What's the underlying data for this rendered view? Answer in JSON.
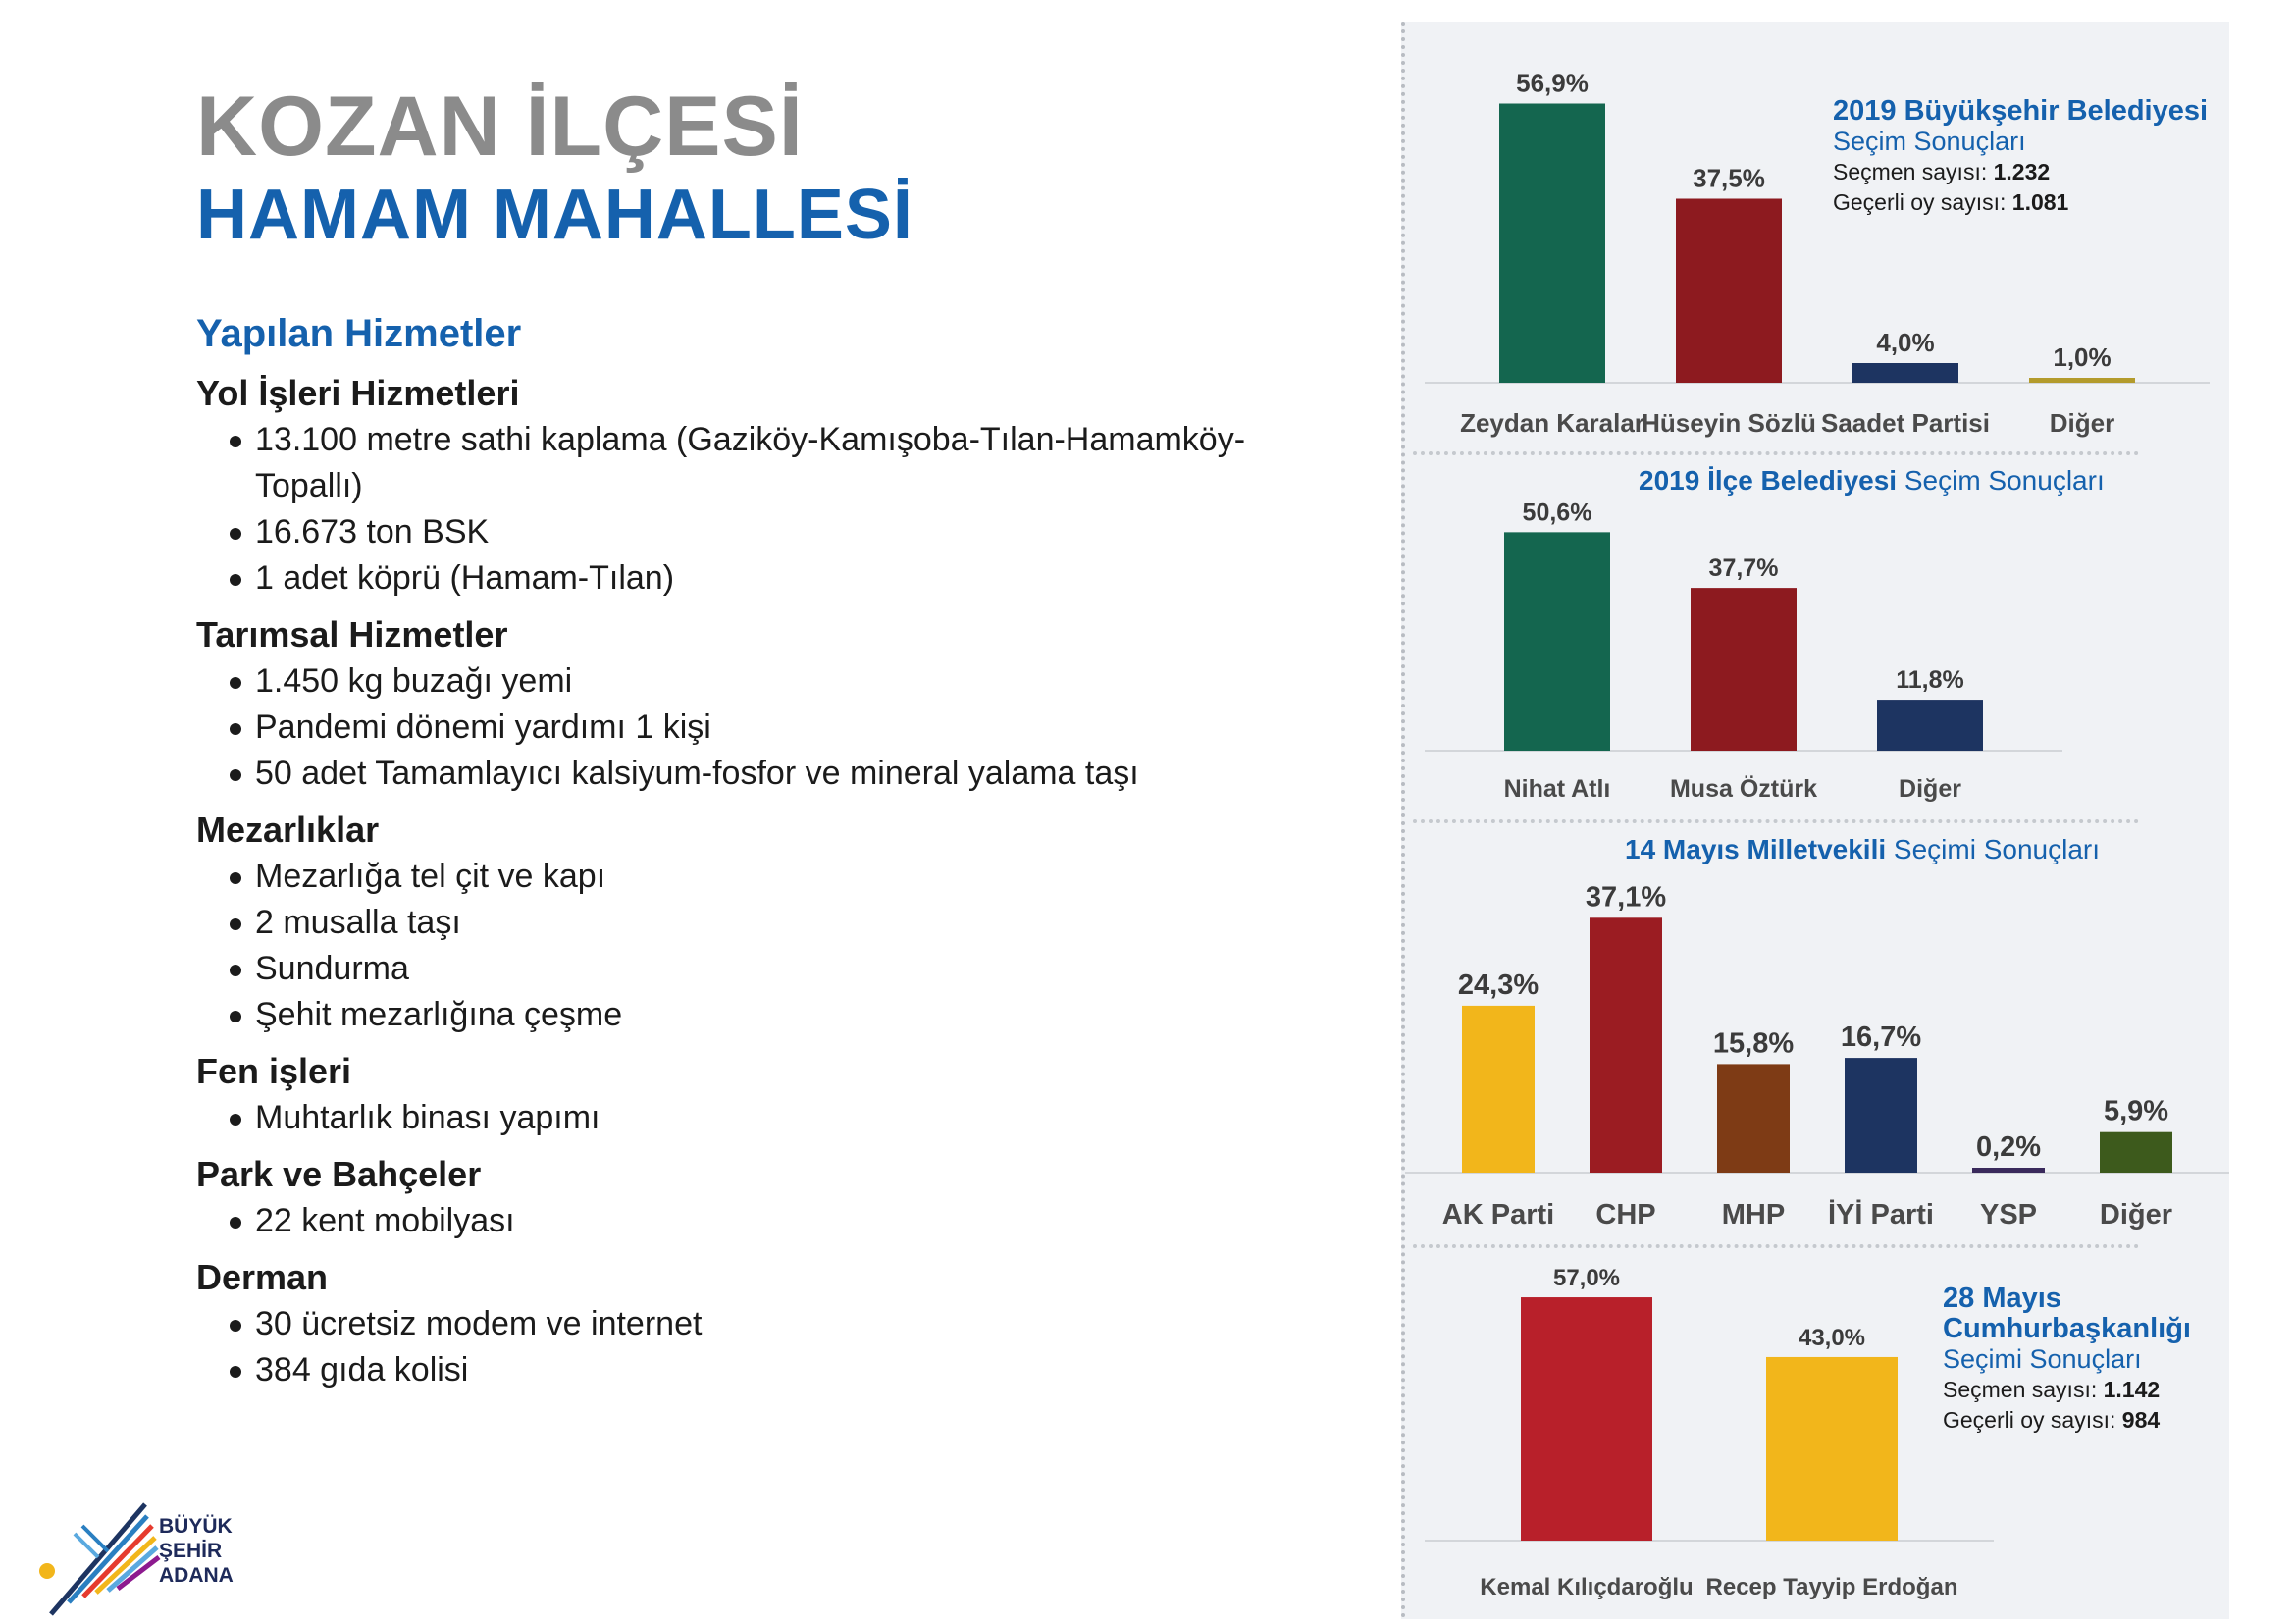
{
  "header": {
    "district": "KOZAN İLÇESİ",
    "neighborhood": "HAMAM MAHALLESİ"
  },
  "services": {
    "title": "Yapılan Hizmetler",
    "categories": [
      {
        "title": "Yol İşleri Hizmetleri",
        "items": [
          "13.100 metre sathi kaplama (Gaziköy-Kamışoba-Tılan-Hamamköy-Topallı)",
          "16.673 ton BSK",
          "1 adet köprü (Hamam-Tılan)"
        ]
      },
      {
        "title": "Tarımsal Hizmetler",
        "items": [
          "1.450 kg buzağı yemi",
          "Pandemi dönemi yardımı 1 kişi",
          "50 adet Tamamlayıcı kalsiyum-fosfor ve mineral yalama taşı"
        ]
      },
      {
        "title": "Mezarlıklar",
        "items": [
          "Mezarlığa tel çit ve kapı",
          "2 musalla taşı",
          "Sundurma",
          "Şehit mezarlığına çeşme"
        ]
      },
      {
        "title": "Fen işleri",
        "items": [
          "Muhtarlık binası yapımı"
        ]
      },
      {
        "title": "Park ve Bahçeler",
        "items": [
          "22 kent mobilyası"
        ]
      },
      {
        "title": "Derman",
        "items": [
          "30 ücretsiz modem ve internet",
          "384 gıda kolisi"
        ]
      }
    ]
  },
  "logo": {
    "line1": "BÜYÜK",
    "line2": "ŞEHİR",
    "line3": "ADANA"
  },
  "info_metro": {
    "title": "2019 Büyükşehir Belediyesi",
    "subtitle": "Seçim Sonuçları",
    "voters_label": "Seçmen sayısı:",
    "voters": "1.232",
    "valid_label": "Geçerli oy sayısı:",
    "valid": "1.081"
  },
  "hdr_district": {
    "bold": "2019 İlçe Belediyesi",
    "rest": "Seçim Sonuçları"
  },
  "hdr_mp": {
    "bold": "14 Mayıs Milletvekili",
    "rest": "Seçimi Sonuçları"
  },
  "info_pres": {
    "title1": "28 Mayıs",
    "title2": "Cumhurbaşkanlığı",
    "subtitle": "Seçimi Sonuçları",
    "voters_label": "Seçmen sayısı:",
    "voters": "1.142",
    "valid_label": "Geçerli oy sayısı:",
    "valid": "984"
  },
  "chart_data": [
    {
      "type": "bar",
      "categories": [
        "Zeydan Karalar",
        "Hüseyin Sözlü",
        "Saadet Partisi",
        "Diğer"
      ],
      "values": [
        56.9,
        37.5,
        4.0,
        1.0
      ],
      "labels": [
        "56,9%",
        "37,5%",
        "4,0%",
        "1,0%"
      ],
      "colors": [
        "#14664f",
        "#8d1a1f",
        "#1d3461",
        "#b39b2c"
      ]
    },
    {
      "type": "bar",
      "categories": [
        "Nihat Atlı",
        "Musa Öztürk",
        "Diğer"
      ],
      "values": [
        50.6,
        37.7,
        11.8
      ],
      "labels": [
        "50,6%",
        "37,7%",
        "11,8%"
      ],
      "colors": [
        "#14664f",
        "#8d1a1f",
        "#1d3461"
      ]
    },
    {
      "type": "bar",
      "categories": [
        "AK Parti",
        "CHP",
        "MHP",
        "İYİ Parti",
        "YSP",
        "Diğer"
      ],
      "values": [
        24.3,
        37.1,
        15.8,
        16.7,
        0.2,
        5.9
      ],
      "labels": [
        "24,3%",
        "37,1%",
        "15,8%",
        "16,7%",
        "0,2%",
        "5,9%"
      ],
      "colors": [
        "#f2b61b",
        "#9b1c22",
        "#7e3b15",
        "#1d3461",
        "#3a2a5c",
        "#3d5a1c"
      ]
    },
    {
      "type": "bar",
      "categories": [
        "Kemal Kılıçdaroğlu",
        "Recep Tayyip Erdoğan"
      ],
      "values": [
        57.0,
        43.0
      ],
      "labels": [
        "57,0%",
        "43,0%"
      ],
      "colors": [
        "#b8202a",
        "#f2b61b"
      ]
    }
  ]
}
